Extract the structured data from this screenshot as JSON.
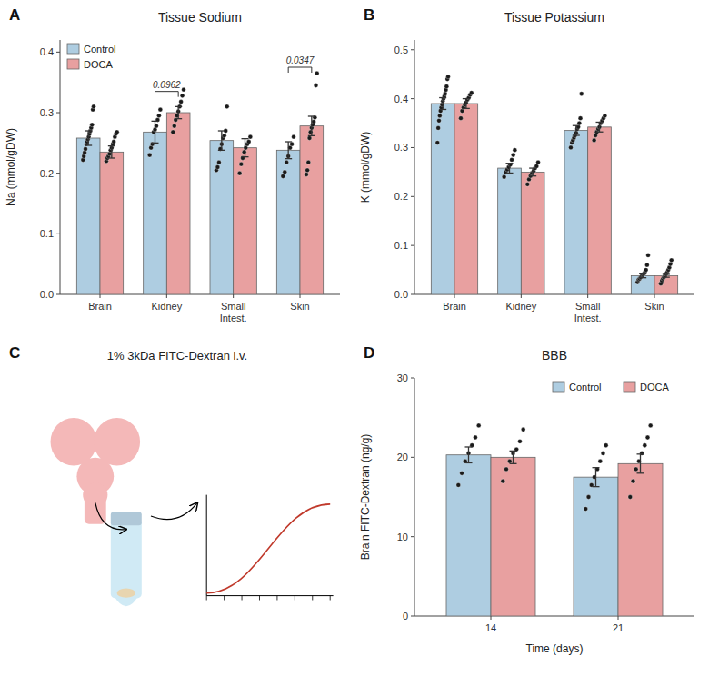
{
  "chart_data": [
    {
      "type": "bar",
      "title": "Tissue Sodium",
      "ylabel": "Na (mmol/gDW)",
      "categories": [
        "Brain",
        "Kidney",
        "Small\nIntest.",
        "Skin"
      ],
      "series": [
        {
          "name": "Control",
          "color": "#aecde1",
          "values": [
            0.258,
            0.268,
            0.254,
            0.238
          ],
          "errors": [
            0.012,
            0.018,
            0.016,
            0.014
          ],
          "points": [
            [
              0.222,
              0.228,
              0.234,
              0.24,
              0.248,
              0.252,
              0.256,
              0.26,
              0.265,
              0.27,
              0.275,
              0.28,
              0.305,
              0.31
            ],
            [
              0.23,
              0.242,
              0.248,
              0.268,
              0.272,
              0.278,
              0.288,
              0.295,
              0.305
            ],
            [
              0.205,
              0.21,
              0.218,
              0.24,
              0.248,
              0.258,
              0.262,
              0.27,
              0.31
            ],
            [
              0.195,
              0.202,
              0.218,
              0.228,
              0.242,
              0.248,
              0.26
            ]
          ]
        },
        {
          "name": "DOCA",
          "color": "#e8a0a0",
          "values": [
            0.235,
            0.3,
            0.242,
            0.278
          ],
          "errors": [
            0.01,
            0.01,
            0.015,
            0.016
          ],
          "points": [
            [
              0.22,
              0.225,
              0.228,
              0.232,
              0.238,
              0.242,
              0.248,
              0.252,
              0.26,
              0.265,
              0.268
            ],
            [
              0.268,
              0.278,
              0.288,
              0.295,
              0.302,
              0.31,
              0.318,
              0.328,
              0.338
            ],
            [
              0.2,
              0.215,
              0.225,
              0.235,
              0.242,
              0.248,
              0.252,
              0.26
            ],
            [
              0.198,
              0.205,
              0.218,
              0.258,
              0.268,
              0.275,
              0.28,
              0.285,
              0.292,
              0.345,
              0.365
            ]
          ]
        }
      ],
      "ylim": [
        0.0,
        0.42
      ],
      "yticks": [
        {
          "value": 0.0,
          "label": "0.0"
        },
        0.1,
        0.2,
        0.3,
        0.4
      ],
      "legend": "upper left",
      "annotations": [
        {
          "text": "A"
        },
        {
          "text": "0.0962",
          "category": "Kidney",
          "y": 0.335
        },
        {
          "text": "0.0347",
          "category": "Skin",
          "y": 0.375
        }
      ]
    },
    {
      "type": "bar",
      "title": "Tissue Potassium",
      "ylabel": "K (mmol/gDW)",
      "categories": [
        "Brain",
        "Kidney",
        "Small\nIntest.",
        "Skin"
      ],
      "series": [
        {
          "color": "#aecde1",
          "values": [
            0.39,
            0.258,
            0.335,
            0.038
          ],
          "errors": [
            0.012,
            0.01,
            0.01,
            0.004
          ],
          "points": [
            [
              0.31,
              0.34,
              0.355,
              0.365,
              0.375,
              0.382,
              0.388,
              0.395,
              0.4,
              0.405,
              0.41,
              0.418,
              0.425,
              0.44,
              0.445
            ],
            [
              0.24,
              0.25,
              0.255,
              0.26,
              0.265,
              0.275,
              0.285,
              0.295
            ],
            [
              0.3,
              0.31,
              0.315,
              0.32,
              0.325,
              0.33,
              0.338,
              0.342,
              0.35,
              0.36,
              0.41
            ],
            [
              0.025,
              0.03,
              0.032,
              0.035,
              0.038,
              0.04,
              0.042,
              0.045,
              0.05,
              0.06,
              0.08
            ]
          ]
        },
        {
          "color": "#e8a0a0",
          "values": [
            0.39,
            0.25,
            0.342,
            0.038
          ],
          "errors": [
            0.01,
            0.008,
            0.01,
            0.003
          ],
          "points": [
            [
              0.36,
              0.375,
              0.382,
              0.388,
              0.392,
              0.398,
              0.402,
              0.408,
              0.412
            ],
            [
              0.225,
              0.235,
              0.242,
              0.248,
              0.252,
              0.258,
              0.262,
              0.27
            ],
            [
              0.315,
              0.325,
              0.332,
              0.338,
              0.342,
              0.35,
              0.355,
              0.36,
              0.365
            ],
            [
              0.022,
              0.028,
              0.032,
              0.035,
              0.038,
              0.042,
              0.045,
              0.05,
              0.055,
              0.062,
              0.07
            ]
          ]
        }
      ],
      "ylim": [
        0.0,
        0.52
      ],
      "yticks": [
        {
          "value": 0.0,
          "label": "0.0"
        },
        0.1,
        0.2,
        0.3,
        0.4,
        0.5
      ],
      "annotations": [
        {
          "text": "B"
        }
      ]
    },
    {
      "type": "schematic",
      "title": "1% 3kDa FITC-Dextran i.v.",
      "color": "#c0392b",
      "annotations": [
        {
          "text": "C"
        }
      ]
    },
    {
      "type": "bar",
      "title": "BBB",
      "ylabel": "Brain FITC-Dextran (ng/g)",
      "xlabel": "Time (days)",
      "categories": [
        "14",
        "21"
      ],
      "series": [
        {
          "name": "Control",
          "color": "#aecde1",
          "values": [
            20.3,
            17.5
          ],
          "errors": [
            1.0,
            1.2
          ],
          "points": [
            [
              16.5,
              18.0,
              19.5,
              20.5,
              21.5,
              22.5,
              24.0
            ],
            [
              13.5,
              15.0,
              16.5,
              17.5,
              18.5,
              19.5,
              20.5,
              21.5
            ]
          ]
        },
        {
          "name": "DOCA",
          "color": "#e8a0a0",
          "values": [
            20.0,
            19.2
          ],
          "errors": [
            0.8,
            1.2
          ],
          "points": [
            [
              17.0,
              18.5,
              19.5,
              20.5,
              21.0,
              22.0,
              23.5
            ],
            [
              15.0,
              17.0,
              18.5,
              19.5,
              20.5,
              21.5,
              22.5,
              24.0
            ]
          ]
        }
      ],
      "ylim": [
        0,
        30
      ],
      "yticks": [
        0,
        10,
        20,
        30
      ],
      "legend": "upper right",
      "annotations": [
        {
          "text": "D"
        }
      ]
    }
  ]
}
